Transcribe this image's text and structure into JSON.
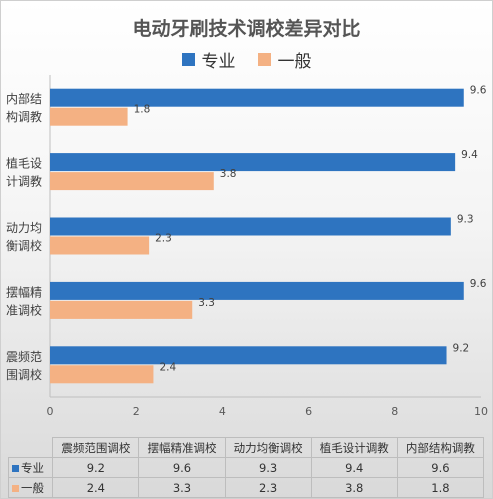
{
  "colors": {
    "series0": "#2e74c0",
    "series1": "#f4b183",
    "title": "#555555"
  },
  "chart_data": {
    "type": "bar",
    "orientation": "horizontal",
    "title": "电动牙刷技术调校差异对比",
    "categories": [
      "震频范围调校",
      "摆幅精准调校",
      "动力均衡调校",
      "植毛设计调教",
      "内部结构调教"
    ],
    "axis_category_labels": [
      [
        "震频范",
        "围调校"
      ],
      [
        "摆幅精",
        "准调校"
      ],
      [
        "动力均",
        "衡调校"
      ],
      [
        "植毛设",
        "计调教"
      ],
      [
        "内部结",
        "构调教"
      ]
    ],
    "series": [
      {
        "name": "专业",
        "values": [
          9.2,
          9.6,
          9.3,
          9.4,
          9.6
        ]
      },
      {
        "name": "一般",
        "values": [
          2.4,
          3.3,
          2.3,
          3.8,
          1.8
        ]
      }
    ],
    "value_labels": [
      [
        "9.2",
        "9.6",
        "9.3",
        "9.4",
        "9.6"
      ],
      [
        "2.4",
        "3.3",
        "2.3",
        "3.8",
        "1.8"
      ]
    ],
    "xlim": [
      0,
      10
    ],
    "xticks": [
      "0",
      "2",
      "4",
      "6",
      "8",
      "10"
    ],
    "legend": "top",
    "data_table": true,
    "grid": false
  }
}
